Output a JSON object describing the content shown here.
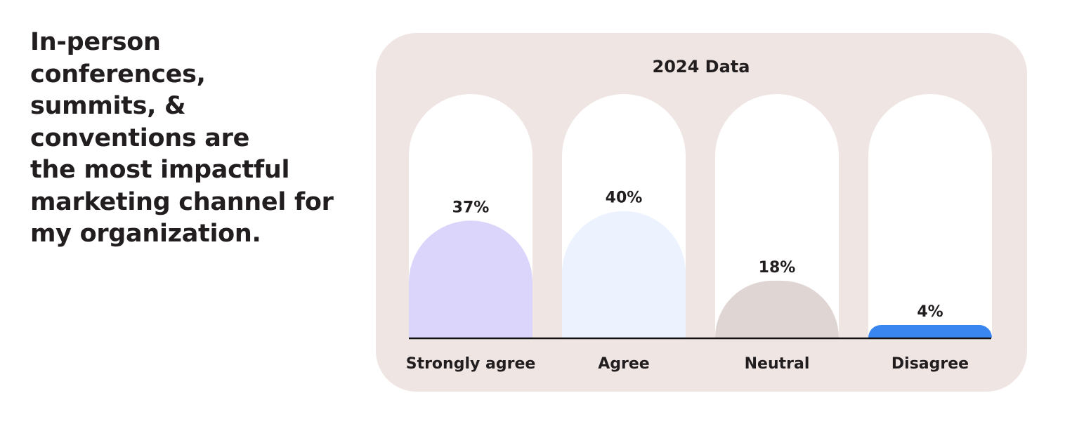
{
  "headline": {
    "lines": [
      "In-person",
      "conferences,",
      "summits, &",
      "conventions are",
      "the most impactful",
      "marketing channel for",
      "my organization."
    ]
  },
  "chart_data": {
    "type": "bar",
    "title": "2024 Data",
    "categories": [
      "Strongly agree",
      "Agree",
      "Neutral",
      "Disagree"
    ],
    "values": [
      37,
      40,
      18,
      4
    ],
    "value_labels": [
      "37%",
      "40%",
      "18%",
      "4%"
    ],
    "ylim": [
      0,
      77
    ],
    "colors": [
      "#dbd5fb",
      "#ecf3fe",
      "#dfd6d4",
      "#3a86f1"
    ],
    "track_color": "#ffffff",
    "grid": false,
    "legend": "none"
  }
}
